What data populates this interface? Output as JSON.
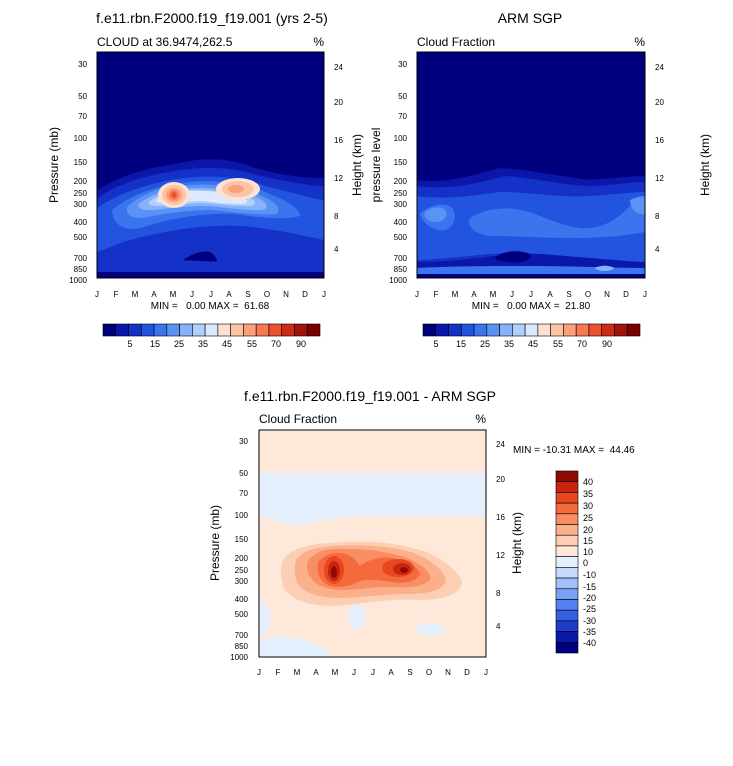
{
  "colors": {
    "cloud_scale": [
      "#00007f",
      "#0a17a8",
      "#1431c8",
      "#2254e0",
      "#3a75ee",
      "#5a93f5",
      "#86b2fa",
      "#b2d0fd",
      "#ddeafd",
      "#fde2d4",
      "#fcc3a5",
      "#fba07a",
      "#f77a52",
      "#ea5131",
      "#cf2a17",
      "#a5110b",
      "#7d0000"
    ],
    "diff_scale": [
      "#00007f",
      "#0a1aa8",
      "#1e3ccc",
      "#3560e4",
      "#5581ef",
      "#7aa0f6",
      "#a2c0fb",
      "#c6dafd",
      "#e4f0fe",
      "#fde8da",
      "#fccfb4",
      "#fbb08c",
      "#f98d63",
      "#f46a3c",
      "#e84721",
      "#c9240f",
      "#8f0a03"
    ]
  },
  "chart_data": [
    {
      "type": "heatmap",
      "title": "f.e11.rbn.F2000.f19_f19.001 (yrs 2-5)",
      "subtitle_left": "CLOUD at 36.9474,262.5",
      "subtitle_right": "%",
      "ylabel": "Pressure (mb)",
      "ylabel_right": "Height (km)",
      "x_ticks": [
        "J",
        "F",
        "M",
        "A",
        "M",
        "J",
        "J",
        "A",
        "S",
        "O",
        "N",
        "D",
        "J"
      ],
      "y_ticks": [
        "30",
        "50",
        "70",
        "100",
        "150",
        "200",
        "250",
        "300",
        "400",
        "500",
        "700",
        "850",
        "1000"
      ],
      "y_ticks_right": [
        "24",
        "20",
        "16",
        "12",
        "8",
        "4"
      ],
      "stats": "MIN =   0.00 MAX =  61.68",
      "colorbar_labels": [
        "5",
        "15",
        "25",
        "35",
        "45",
        "55",
        "70",
        "90"
      ]
    },
    {
      "type": "heatmap",
      "title": "ARM SGP",
      "subtitle_left": "Cloud Fraction",
      "subtitle_right": "%",
      "ylabel": "pressure level",
      "ylabel_right": "Height (km)",
      "x_ticks": [
        "J",
        "F",
        "M",
        "A",
        "M",
        "J",
        "J",
        "A",
        "S",
        "O",
        "N",
        "D",
        "J"
      ],
      "y_ticks": [
        "30",
        "50",
        "70",
        "100",
        "150",
        "200",
        "250",
        "300",
        "400",
        "500",
        "700",
        "850",
        "1000"
      ],
      "y_ticks_right": [
        "24",
        "20",
        "16",
        "12",
        "8",
        "4"
      ],
      "stats": "MIN =   0.00 MAX =  21.80",
      "colorbar_labels": [
        "5",
        "15",
        "25",
        "35",
        "45",
        "55",
        "70",
        "90"
      ]
    },
    {
      "type": "heatmap",
      "title": "f.e11.rbn.F2000.f19_f19.001 - ARM SGP",
      "subtitle_left": "Cloud Fraction",
      "subtitle_right": "%",
      "ylabel": "Pressure (mb)",
      "ylabel_right": "Height (km)",
      "x_ticks": [
        "J",
        "F",
        "M",
        "A",
        "M",
        "J",
        "J",
        "A",
        "S",
        "O",
        "N",
        "D",
        "J"
      ],
      "y_ticks": [
        "30",
        "50",
        "70",
        "100",
        "150",
        "200",
        "250",
        "300",
        "400",
        "500",
        "700",
        "850",
        "1000"
      ],
      "y_ticks_right": [
        "24",
        "20",
        "16",
        "12",
        "8",
        "4"
      ],
      "stats": "MIN = -10.31 MAX =  44.46",
      "colorbar_labels": [
        "40",
        "35",
        "30",
        "25",
        "20",
        "15",
        "10",
        "0",
        "-10",
        "-15",
        "-20",
        "-25",
        "-30",
        "-35",
        "-40"
      ]
    }
  ]
}
